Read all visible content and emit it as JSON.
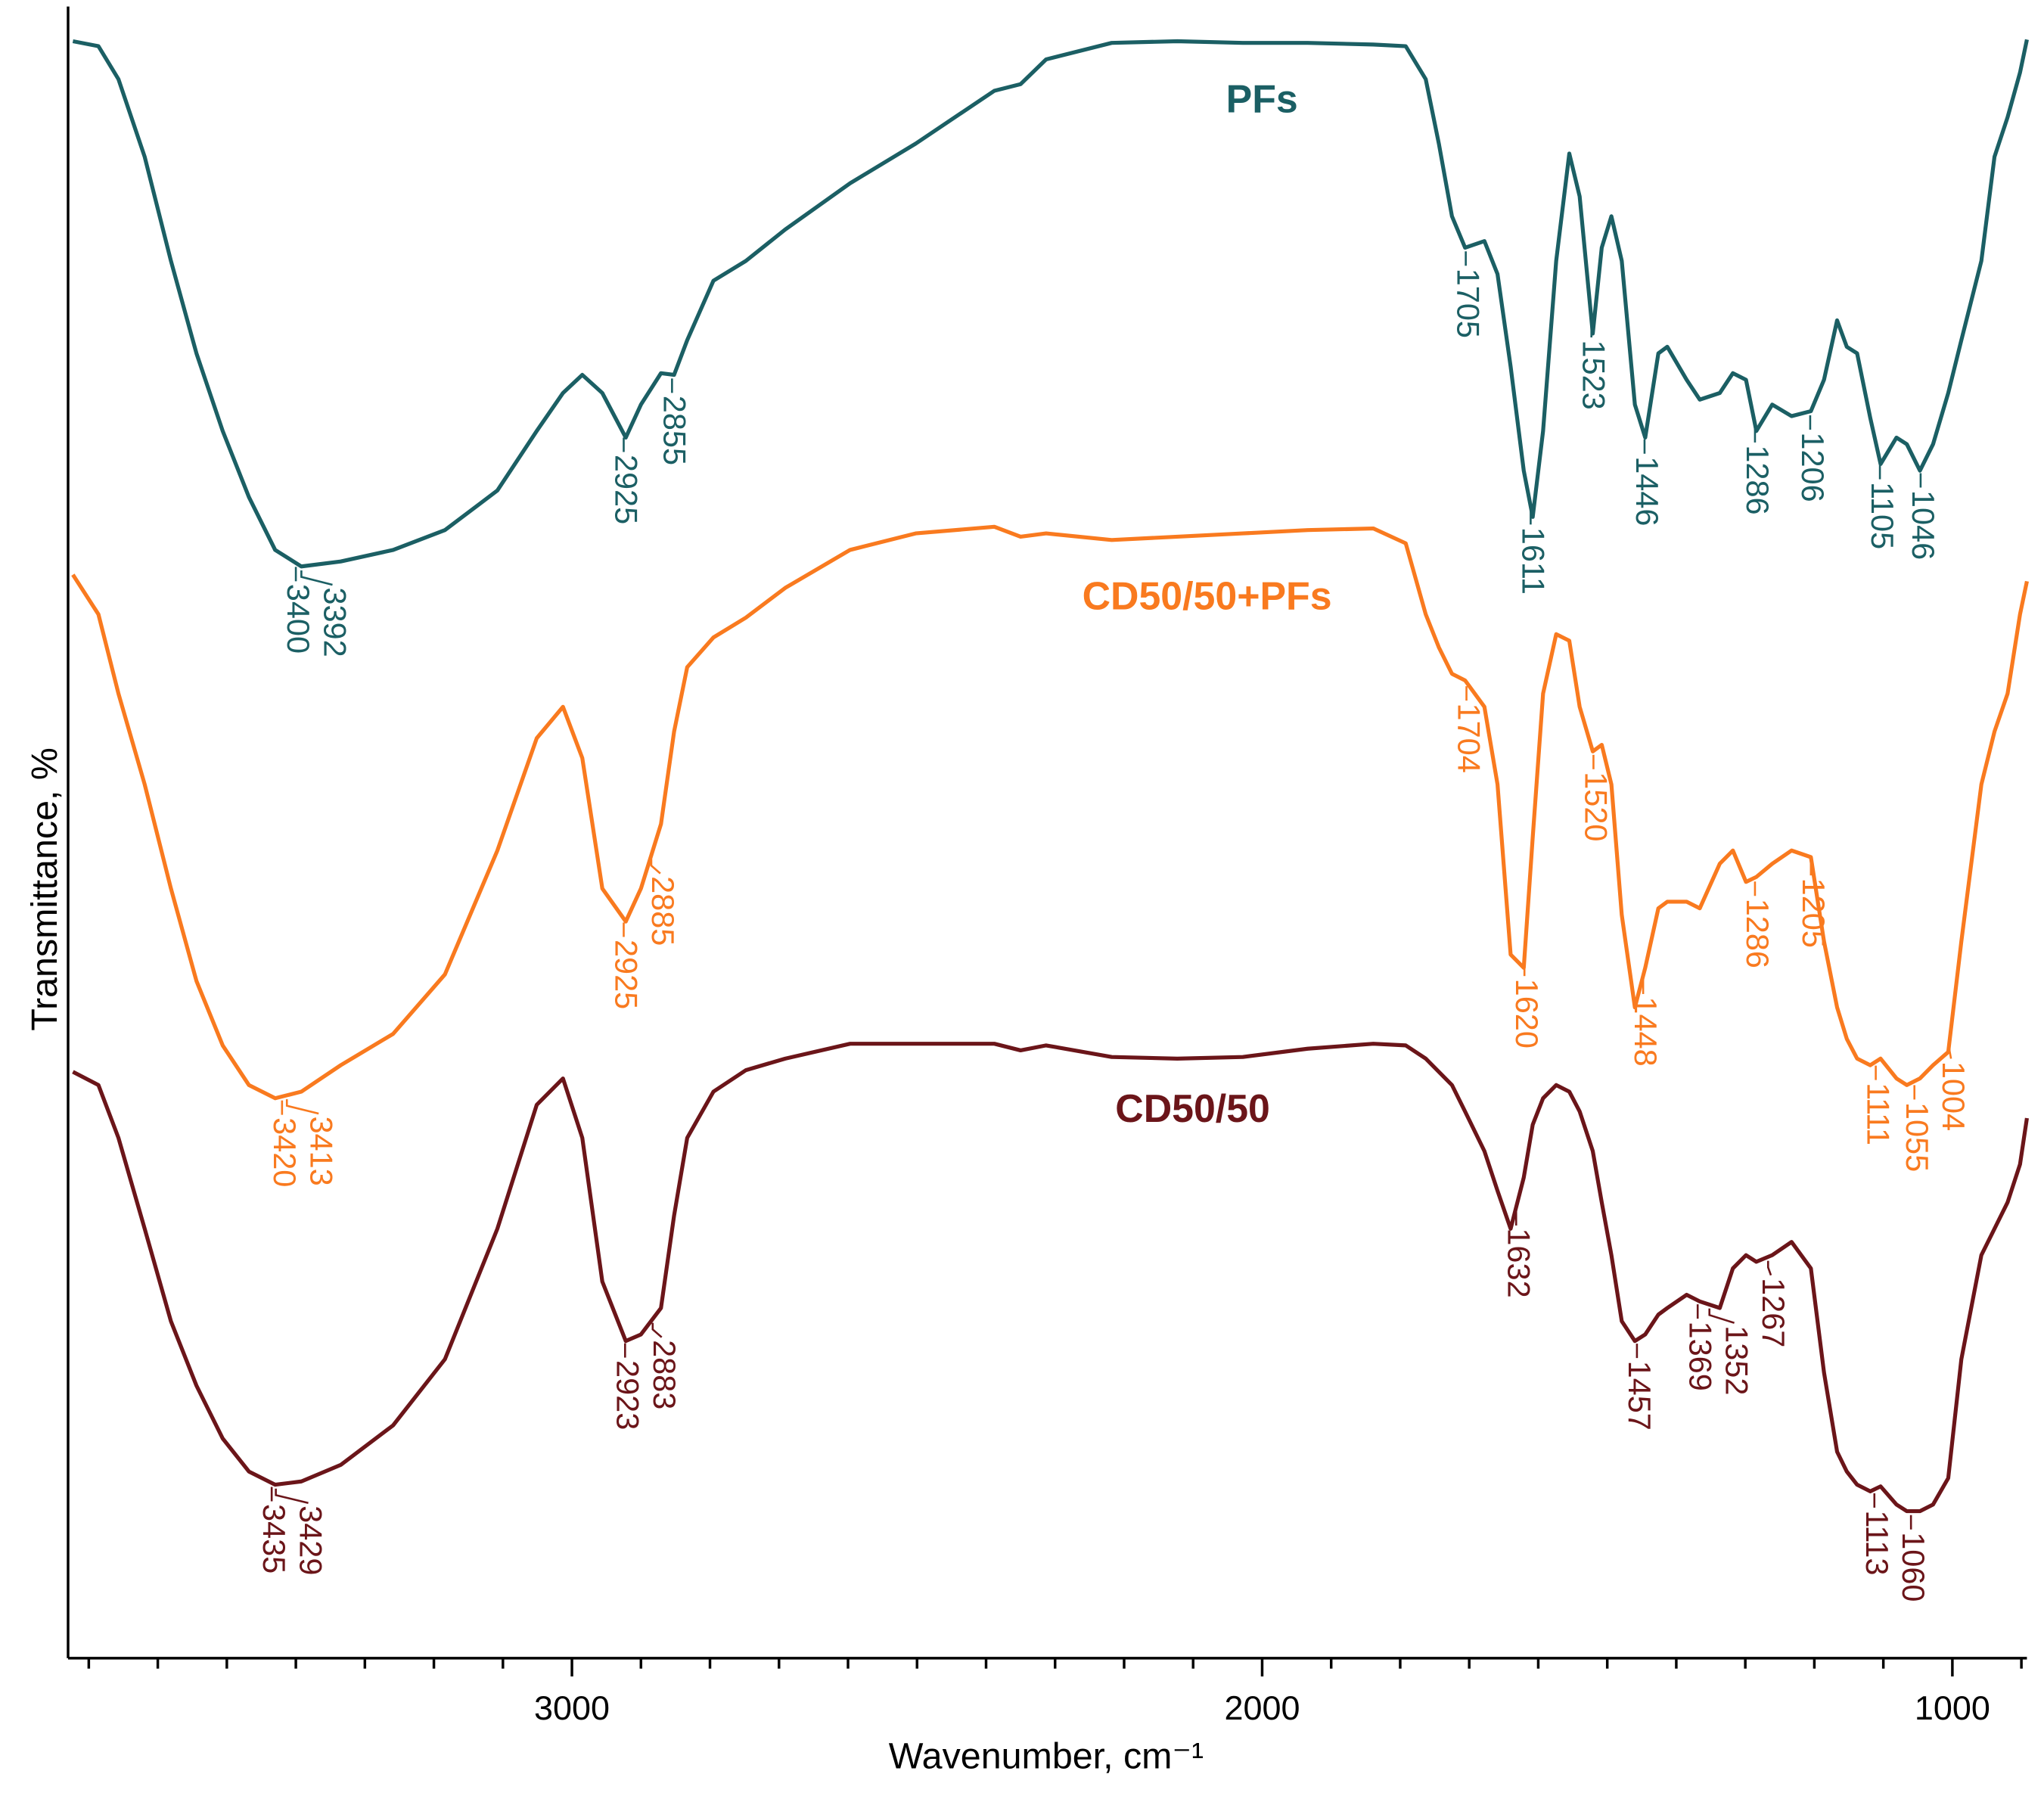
{
  "chart_data": {
    "type": "line",
    "xlabel": "Wavenumber, cm⁻¹",
    "ylabel": "Transmittance, %",
    "xlim": [
      3730,
      892
    ],
    "xticks": [
      3000,
      2000,
      1000
    ],
    "xminor_ticks": [
      3700,
      3600,
      3500,
      3400,
      3300,
      3200,
      3100,
      2900,
      2800,
      2700,
      2600,
      2500,
      2400,
      2300,
      2200,
      2100,
      1900,
      1800,
      1700,
      1600,
      1500,
      1400,
      1300,
      1200,
      1100,
      900
    ],
    "ylim": [
      0,
      100
    ],
    "x": [
      3723,
      3686,
      3657,
      3619,
      3581,
      3544,
      3506,
      3468,
      3430,
      3392,
      3335,
      3259,
      3184,
      3108,
      3051,
      3013,
      2985,
      2956,
      2922,
      2900,
      2871,
      2852,
      2833,
      2795,
      2748,
      2691,
      2597,
      2502,
      2388,
      2350,
      2313,
      2218,
      2123,
      2028,
      1934,
      1839,
      1792,
      1763,
      1744,
      1725,
      1706,
      1678,
      1659,
      1640,
      1621,
      1608,
      1593,
      1574,
      1555,
      1540,
      1521,
      1508,
      1494,
      1479,
      1460,
      1445,
      1426,
      1413,
      1385,
      1366,
      1337,
      1318,
      1299,
      1284,
      1261,
      1233,
      1205,
      1186,
      1167,
      1153,
      1138,
      1119,
      1104,
      1081,
      1066,
      1047,
      1028,
      1006,
      987,
      958,
      939,
      920,
      902,
      892
    ],
    "series": [
      {
        "name": "PFs",
        "color": "#1b5f64",
        "values": [
          97.9,
          97.6,
          95.6,
          90.9,
          84.6,
          79.0,
          74.3,
          70.3,
          67.1,
          66.1,
          66.4,
          67.1,
          68.3,
          70.7,
          74.3,
          76.6,
          77.7,
          76.6,
          73.9,
          75.9,
          77.8,
          77.7,
          79.8,
          83.4,
          84.6,
          86.5,
          89.3,
          91.7,
          94.9,
          95.3,
          96.8,
          97.8,
          97.9,
          97.8,
          97.8,
          97.7,
          97.6,
          95.6,
          91.7,
          87.3,
          85.4,
          85.8,
          83.8,
          78.2,
          71.9,
          69.1,
          74.3,
          84.6,
          91.1,
          88.5,
          80.2,
          85.4,
          87.3,
          84.6,
          75.9,
          73.9,
          79.0,
          79.4,
          77.4,
          76.2,
          76.6,
          77.8,
          77.4,
          74.3,
          75.9,
          75.2,
          75.5,
          77.4,
          81.0,
          79.4,
          79.0,
          75.1,
          72.3,
          73.9,
          73.5,
          71.9,
          73.5,
          76.6,
          79.8,
          84.6,
          90.9,
          93.3,
          96.0,
          98.0
        ],
        "peaks": [
          3400,
          3392,
          2925,
          2855,
          1705,
          1611,
          1523,
          1446,
          1286,
          1206,
          1105,
          1046
        ]
      },
      {
        "name": "CD50/50+PFs",
        "color": "#f97a1f",
        "values": [
          65.6,
          63.2,
          58.4,
          52.9,
          46.6,
          41.0,
          37.1,
          34.7,
          33.9,
          34.3,
          35.9,
          37.8,
          41.4,
          48.9,
          55.7,
          57.6,
          54.5,
          46.6,
          44.6,
          46.6,
          50.5,
          56.1,
          60.0,
          61.8,
          63.0,
          64.8,
          67.1,
          68.1,
          68.5,
          67.9,
          68.1,
          67.7,
          67.9,
          68.1,
          68.3,
          68.4,
          67.5,
          63.2,
          61.2,
          59.6,
          59.2,
          57.6,
          52.9,
          42.6,
          41.8,
          49.7,
          58.4,
          62.0,
          61.6,
          57.6,
          54.9,
          55.3,
          52.9,
          45.0,
          39.4,
          41.8,
          45.4,
          45.8,
          45.8,
          45.4,
          48.1,
          48.9,
          47.0,
          47.3,
          48.1,
          48.9,
          48.5,
          43.4,
          39.4,
          37.5,
          36.3,
          35.9,
          36.3,
          35.1,
          34.7,
          35.1,
          35.9,
          36.7,
          43.4,
          52.9,
          56.1,
          58.4,
          63.2,
          65.2
        ],
        "peaks": [
          3420,
          3413,
          2925,
          2885,
          1704,
          1620,
          1520,
          1448,
          1286,
          1205,
          1111,
          1055,
          1004
        ]
      },
      {
        "name": "CD50/50",
        "color": "#6b1519",
        "values": [
          35.5,
          34.7,
          31.5,
          26.0,
          20.4,
          16.5,
          13.3,
          11.3,
          10.5,
          10.7,
          11.7,
          14.1,
          18.1,
          26.0,
          33.5,
          35.1,
          31.5,
          22.8,
          19.2,
          19.6,
          21.2,
          26.8,
          31.5,
          34.3,
          35.6,
          36.3,
          37.2,
          37.2,
          37.2,
          36.8,
          37.1,
          36.4,
          36.3,
          36.4,
          36.9,
          37.2,
          37.1,
          36.3,
          35.5,
          34.7,
          33.1,
          30.7,
          28.3,
          26.0,
          29.1,
          32.3,
          33.9,
          34.7,
          34.3,
          33.1,
          30.7,
          27.6,
          24.4,
          20.4,
          19.2,
          19.6,
          20.8,
          21.2,
          22.0,
          21.6,
          21.2,
          23.6,
          24.4,
          24.0,
          24.4,
          25.2,
          23.6,
          17.3,
          12.5,
          11.3,
          10.5,
          10.1,
          10.4,
          9.3,
          8.9,
          8.9,
          9.3,
          10.9,
          18.1,
          24.4,
          26.0,
          27.6,
          29.9,
          32.7
        ],
        "peaks": [
          3435,
          3429,
          2923,
          2883,
          1632,
          1457,
          1369,
          1352,
          1267,
          1113,
          1060
        ]
      }
    ]
  }
}
